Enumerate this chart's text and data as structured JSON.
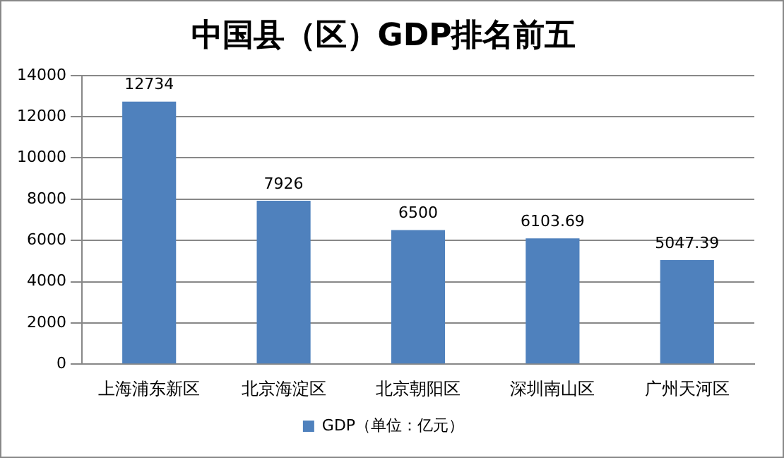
{
  "chart_data": {
    "type": "bar",
    "title": "中国县（区）GDP排名前五",
    "categories": [
      "上海浦东新区",
      "北京海淀区",
      "北京朝阳区",
      "深圳南山区",
      "广州天河区"
    ],
    "series": [
      {
        "name": "GDP（单位：亿元）",
        "color": "#4f81bd",
        "values": [
          12734,
          7926,
          6500,
          6103.69,
          5047.39
        ]
      }
    ],
    "ylim": [
      0,
      14000
    ],
    "yticks": [
      0,
      2000,
      4000,
      6000,
      8000,
      10000,
      12000,
      14000
    ],
    "grid": "y",
    "legend": "bottom",
    "data_labels": true
  }
}
